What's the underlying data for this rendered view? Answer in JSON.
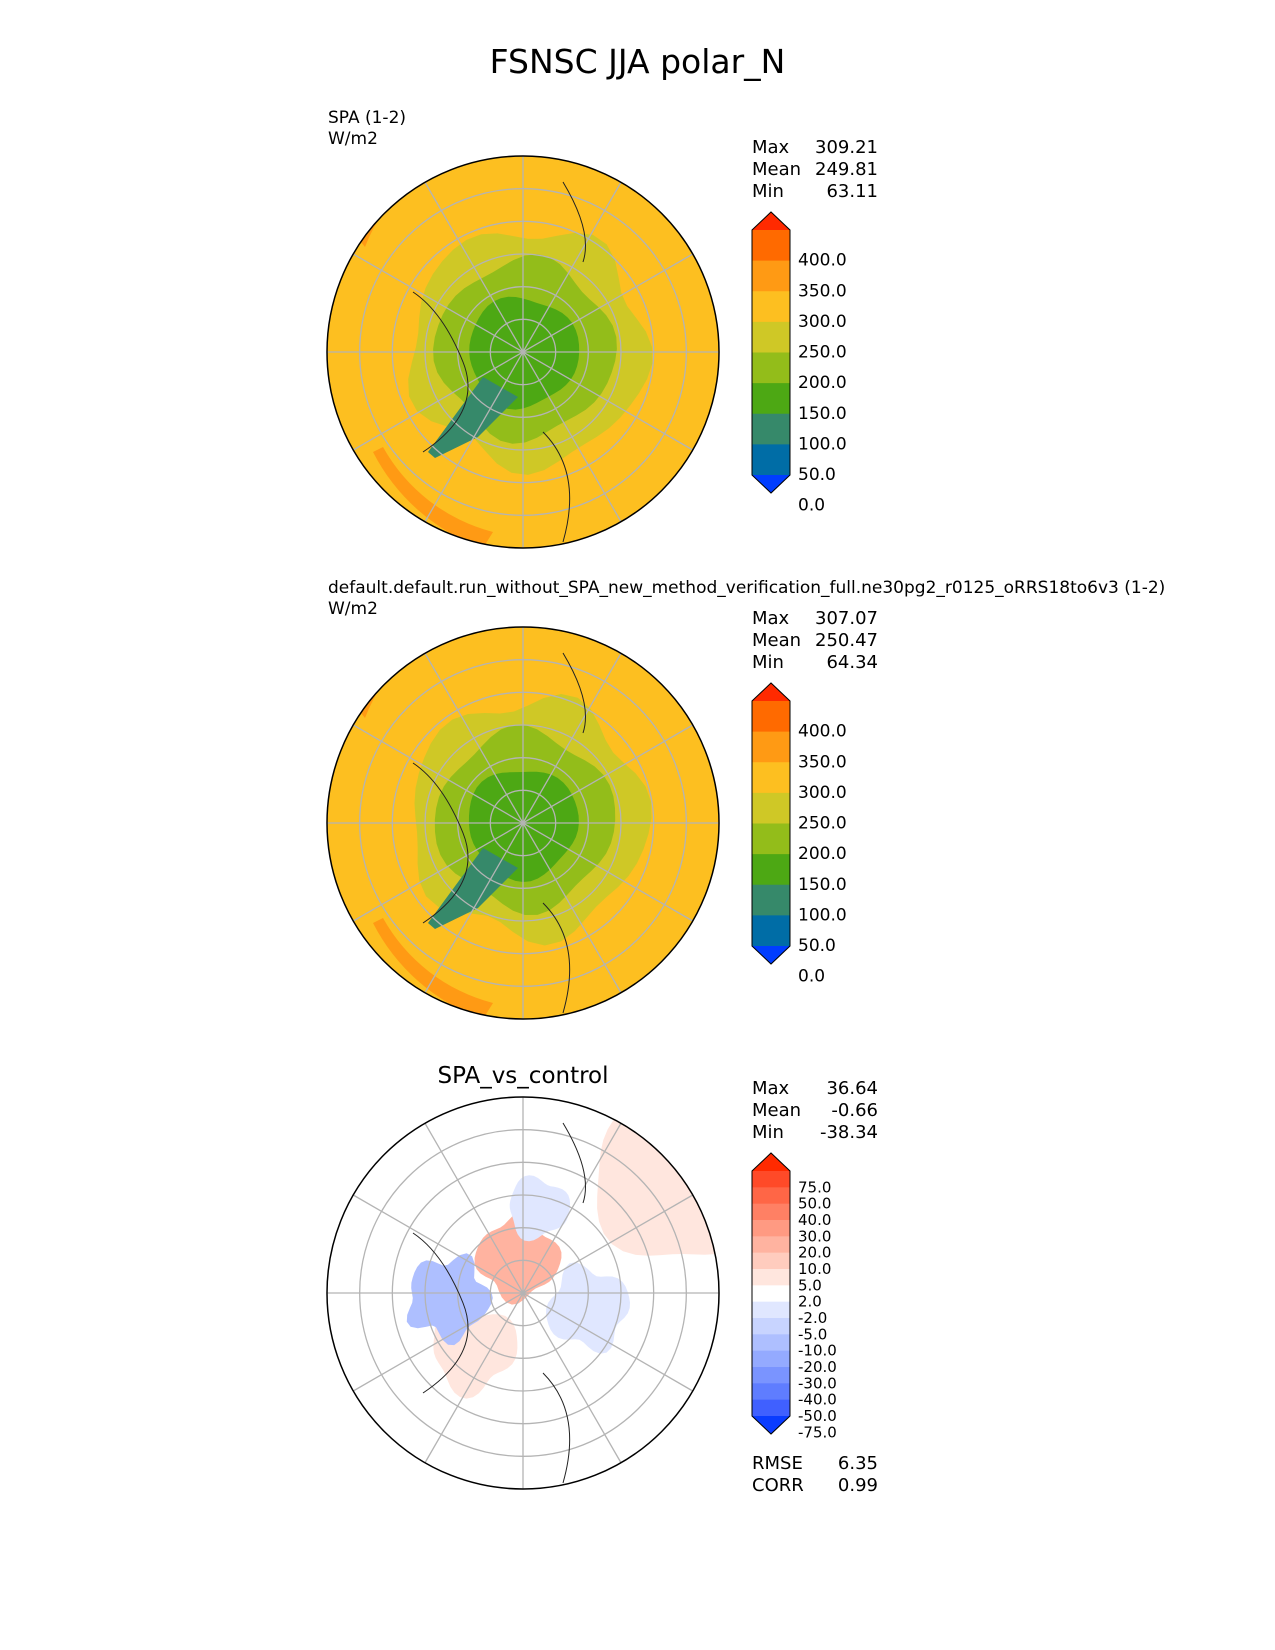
{
  "title": "FSNSC JJA polar_N",
  "panels": [
    {
      "label": "SPA (1-2)",
      "units": "W/m2",
      "stats": [
        {
          "name": "Max",
          "value": "309.21"
        },
        {
          "name": "Mean",
          "value": "249.81"
        },
        {
          "name": "Min",
          "value": "63.11"
        }
      ]
    },
    {
      "label": "default.default.run_without_SPA_new_method_verification_full.ne30pg2_r0125_oRRS18to6v3 (1-2)",
      "units": "W/m2",
      "stats": [
        {
          "name": "Max",
          "value": "307.07"
        },
        {
          "name": "Mean",
          "value": "250.47"
        },
        {
          "name": "Min",
          "value": "64.34"
        }
      ]
    },
    {
      "title": "SPA_vs_control",
      "stats": [
        {
          "name": "Max",
          "value": "36.64"
        },
        {
          "name": "Mean",
          "value": "-0.66"
        },
        {
          "name": "Min",
          "value": "-38.34"
        }
      ],
      "metrics": [
        {
          "name": "RMSE",
          "value": "6.35"
        },
        {
          "name": "CORR",
          "value": "0.99"
        }
      ]
    }
  ],
  "chart_data": [
    {
      "type": "heatmap",
      "projection": "north-polar-stereographic",
      "colorbar_levels": [
        "400.0",
        "350.0",
        "300.0",
        "250.0",
        "200.0",
        "150.0",
        "100.0",
        "50.0",
        "0.0"
      ],
      "colors": [
        "#ff2a00",
        "#ff6a00",
        "#ff9a14",
        "#fdbf20",
        "#cfc826",
        "#93bd1a",
        "#4da814",
        "#36896a",
        "#006da6",
        "#003dff"
      ],
      "background_color": "#fdbf20",
      "extend": "both"
    },
    {
      "type": "heatmap",
      "projection": "north-polar-stereographic",
      "colorbar_levels": [
        "400.0",
        "350.0",
        "300.0",
        "250.0",
        "200.0",
        "150.0",
        "100.0",
        "50.0",
        "0.0"
      ],
      "colors": [
        "#ff2a00",
        "#ff6a00",
        "#ff9a14",
        "#fdbf20",
        "#cfc826",
        "#93bd1a",
        "#4da814",
        "#36896a",
        "#006da6",
        "#003dff"
      ],
      "background_color": "#fdbf20",
      "extend": "both"
    },
    {
      "type": "heatmap",
      "projection": "north-polar-stereographic",
      "colorbar_levels": [
        "75.0",
        "50.0",
        "40.0",
        "30.0",
        "20.0",
        "10.0",
        "5.0",
        "2.0",
        "-2.0",
        "-5.0",
        "-10.0",
        "-20.0",
        "-30.0",
        "-40.0",
        "-50.0",
        "-75.0"
      ],
      "colors": [
        "#ff2a00",
        "#ff4a28",
        "#ff6646",
        "#ff8064",
        "#ff9a82",
        "#ffb3a0",
        "#ffccbe",
        "#ffe6de",
        "#ffffff",
        "#e0e7ff",
        "#c8d4ff",
        "#aebfff",
        "#94aaff",
        "#7a94ff",
        "#5f7dff",
        "#4060ff",
        "#0a3cff"
      ],
      "background_color": "#ffffff",
      "extend": "both"
    }
  ]
}
